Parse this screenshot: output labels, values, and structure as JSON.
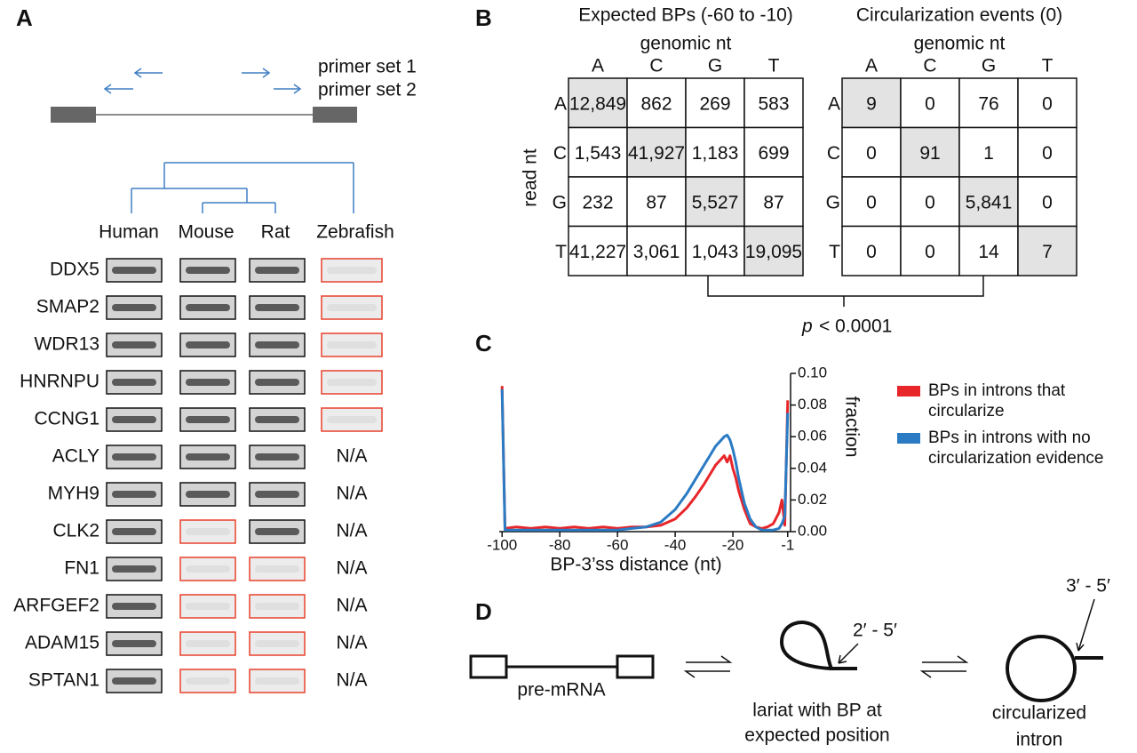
{
  "panel_labels": [
    "A",
    "B",
    "C",
    "D"
  ],
  "panel_a": {
    "primers": [
      "primer set 1",
      "primer set 2"
    ],
    "species": [
      "Human",
      "Mouse",
      "Rat",
      "Zebrafish"
    ],
    "genes": [
      {
        "name": "DDX5",
        "lanes": [
          "black",
          "black",
          "black",
          "red"
        ]
      },
      {
        "name": "SMAP2",
        "lanes": [
          "black",
          "black",
          "black",
          "red"
        ]
      },
      {
        "name": "WDR13",
        "lanes": [
          "black",
          "black",
          "black",
          "red"
        ]
      },
      {
        "name": "HNRNPU",
        "lanes": [
          "black",
          "black",
          "black",
          "red"
        ]
      },
      {
        "name": "CCNG1",
        "lanes": [
          "black",
          "black",
          "black",
          "red"
        ]
      },
      {
        "name": "ACLY",
        "lanes": [
          "black",
          "black",
          "black",
          "N/A"
        ]
      },
      {
        "name": "MYH9",
        "lanes": [
          "black",
          "black",
          "black",
          "N/A"
        ]
      },
      {
        "name": "CLK2",
        "lanes": [
          "black",
          "red",
          "black",
          "N/A"
        ]
      },
      {
        "name": "FN1",
        "lanes": [
          "black",
          "red",
          "red",
          "N/A"
        ]
      },
      {
        "name": "ARFGEF2",
        "lanes": [
          "black",
          "red",
          "red",
          "N/A"
        ]
      },
      {
        "name": "ADAM15",
        "lanes": [
          "black",
          "red",
          "red",
          "N/A"
        ]
      },
      {
        "name": "SPTAN1",
        "lanes": [
          "black",
          "red",
          "red",
          "N/A"
        ]
      }
    ]
  },
  "panel_b": {
    "row_header": "read nt",
    "tables": [
      {
        "title": "Expected BPs (-60 to -10)",
        "col_header": "genomic nt",
        "columns": [
          "A",
          "C",
          "G",
          "T"
        ],
        "rows": [
          {
            "label": "A",
            "cells": [
              "12,849",
              "862",
              "269",
              "583"
            ]
          },
          {
            "label": "C",
            "cells": [
              "1,543",
              "41,927",
              "1,183",
              "699"
            ]
          },
          {
            "label": "G",
            "cells": [
              "232",
              "87",
              "5,527",
              "87"
            ]
          },
          {
            "label": "T",
            "cells": [
              "41,227",
              "3,061",
              "1,043",
              "19,095"
            ]
          }
        ]
      },
      {
        "title": "Circularization events (0)",
        "col_header": "genomic nt",
        "columns": [
          "A",
          "C",
          "G",
          "T"
        ],
        "rows": [
          {
            "label": "A",
            "cells": [
              "9",
              "0",
              "76",
              "0"
            ]
          },
          {
            "label": "C",
            "cells": [
              "0",
              "91",
              "1",
              "0"
            ]
          },
          {
            "label": "G",
            "cells": [
              "0",
              "0",
              "5,841",
              "0"
            ]
          },
          {
            "label": "T",
            "cells": [
              "0",
              "0",
              "14",
              "7"
            ]
          }
        ]
      }
    ],
    "p_symbol": "p",
    "p_text": "< 0.0001"
  },
  "chart_data": {
    "type": "line",
    "xlabel": "BP-3’ss distance (nt)",
    "ylabel": "fraction",
    "x": [
      -100,
      -99,
      -95,
      -90,
      -85,
      -80,
      -75,
      -70,
      -65,
      -60,
      -55,
      -50,
      -45,
      -40,
      -36,
      -33,
      -30,
      -28,
      -26,
      -24,
      -23,
      -22,
      -21,
      -20,
      -19,
      -18,
      -16,
      -14,
      -12,
      -10,
      -8,
      -6,
      -4,
      -3,
      -2,
      -1
    ],
    "series": [
      {
        "name": "BPs in introns that circularize",
        "color": "#e8262a",
        "values": [
          0.092,
          0.002,
          0.003,
          0.002,
          0.003,
          0.002,
          0.003,
          0.002,
          0.003,
          0.002,
          0.003,
          0.003,
          0.004,
          0.008,
          0.015,
          0.022,
          0.03,
          0.036,
          0.042,
          0.046,
          0.048,
          0.044,
          0.048,
          0.04,
          0.034,
          0.026,
          0.014,
          0.005,
          0.003,
          0.002,
          0.003,
          0.005,
          0.012,
          0.02,
          0.004,
          0.083
        ]
      },
      {
        "name": "BPs in introns with no circularization evidence",
        "color": "#2a7bc4",
        "values": [
          0.09,
          0.001,
          0.001,
          0.001,
          0.001,
          0.001,
          0.001,
          0.001,
          0.001,
          0.001,
          0.002,
          0.003,
          0.006,
          0.014,
          0.024,
          0.033,
          0.042,
          0.048,
          0.054,
          0.058,
          0.06,
          0.061,
          0.058,
          0.052,
          0.044,
          0.034,
          0.018,
          0.008,
          0.003,
          0.001,
          0.001,
          0.001,
          0.002,
          0.005,
          0.01,
          0.075
        ]
      }
    ],
    "xlim": [
      -101,
      0
    ],
    "xticks": [
      -100,
      -80,
      -60,
      -40,
      -20,
      -1
    ],
    "ylim": [
      0,
      0.1
    ],
    "yticks": [
      {
        "value": 0,
        "label": "0.00"
      },
      {
        "value": 0.02,
        "label": "0.02"
      },
      {
        "value": 0.04,
        "label": "0.04"
      },
      {
        "value": 0.06,
        "label": "0.06"
      },
      {
        "value": 0.08,
        "label": "0.08"
      },
      {
        "value": 0.1,
        "label": "0.10"
      }
    ],
    "y_axis_side": "right"
  },
  "panel_d": {
    "pre_mrna": "pre-mRNA",
    "lariat": [
      "lariat with BP at",
      "expected position"
    ],
    "lariat_link": "2′ - 5′",
    "circle": [
      "circularized",
      "intron"
    ],
    "circle_link": "3′ - 5′"
  }
}
